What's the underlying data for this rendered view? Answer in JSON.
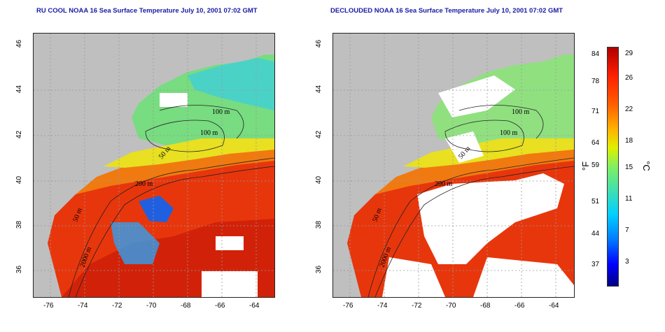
{
  "left_map": {
    "title": "RU COOL NOAA 16 Sea Surface Temperature July 10, 2001 07:02 GMT"
  },
  "right_map": {
    "title": "DECLOUDED NOAA 16 Sea Surface Temperature July 10, 2001 07:02 GMT"
  },
  "axes": {
    "longitude_ticks": [
      "-76",
      "-74",
      "-72",
      "-70",
      "-68",
      "-66",
      "-64"
    ],
    "latitude_ticks": [
      "36",
      "38",
      "40",
      "42",
      "44",
      "46"
    ]
  },
  "contours": {
    "label_100": "100 m",
    "label_50": "50 m",
    "label_200": "200 m",
    "label_2000": "2000 m"
  },
  "colorbar": {
    "fahrenheit_ticks": [
      "84",
      "78",
      "71",
      "64",
      "59",
      "51",
      "44",
      "37"
    ],
    "celsius_ticks": [
      "29",
      "26",
      "22",
      "18",
      "15",
      "11",
      "7",
      "3"
    ],
    "fahrenheit_unit": "°F",
    "celsius_unit": "°C"
  },
  "colors": {
    "land": "#bfbfbf",
    "cloud": "#ffffff",
    "warm": "#e8300a",
    "cool": "#7be07b",
    "title": "#1a1aa6"
  }
}
